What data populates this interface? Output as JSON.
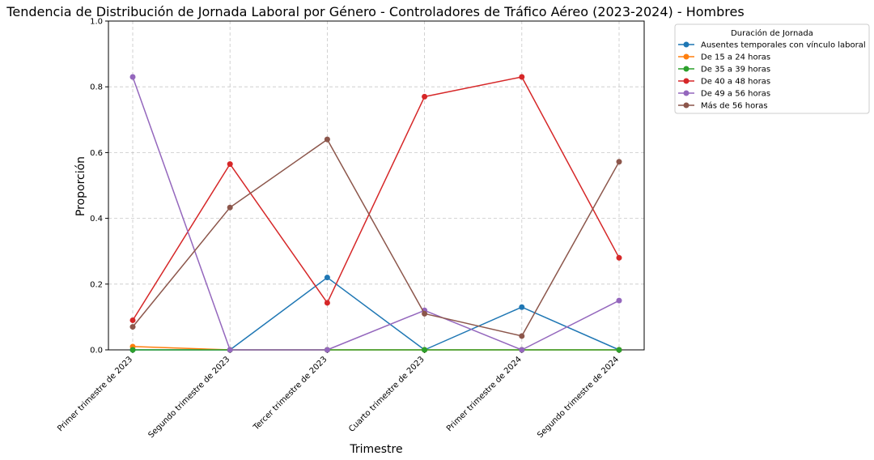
{
  "chart_data": {
    "type": "line",
    "title": "Tendencia de Distribución de Jornada Laboral por Género - Controladores de Tráfico Aéreo (2023-2024) - Hombres",
    "xlabel": "Trimestre",
    "ylabel": "Proporción",
    "ylim": [
      0,
      1
    ],
    "yticks": [
      "0.0",
      "0.2",
      "0.4",
      "0.6",
      "0.8",
      "1.0"
    ],
    "grid": true,
    "legend_title": "Duración de Jornada",
    "legend_position": "outside-top-right",
    "categories": [
      "Primer trimestre de 2023",
      "Segundo trimestre de 2023",
      "Tercer trimestre de 2023",
      "Cuarto trimestre de 2023",
      "Primer trimestre de 2024",
      "Segundo trimestre de 2024"
    ],
    "series": [
      {
        "name": "Ausentes temporales con vínculo laboral",
        "color": "#1f77b4",
        "values": [
          0.0,
          0.0,
          0.22,
          0.0,
          0.13,
          0.0
        ]
      },
      {
        "name": "De 15 a 24 horas",
        "color": "#ff7f0e",
        "values": [
          0.01,
          0.0,
          0.0,
          0.0,
          0.0,
          0.0
        ]
      },
      {
        "name": "De 35 a 39 horas",
        "color": "#2ca02c",
        "values": [
          0.0,
          0.0,
          0.0,
          0.0,
          0.0,
          0.0
        ]
      },
      {
        "name": "De 40 a 48 horas",
        "color": "#d62728",
        "values": [
          0.09,
          0.565,
          0.143,
          0.77,
          0.83,
          0.28
        ]
      },
      {
        "name": "De 49 a 56 horas",
        "color": "#9467bd",
        "values": [
          0.83,
          0.0,
          0.0,
          0.12,
          0.0,
          0.15
        ]
      },
      {
        "name": "Más de 56 horas",
        "color": "#8c564b",
        "values": [
          0.07,
          0.433,
          0.64,
          0.11,
          0.042,
          0.572
        ]
      }
    ]
  }
}
